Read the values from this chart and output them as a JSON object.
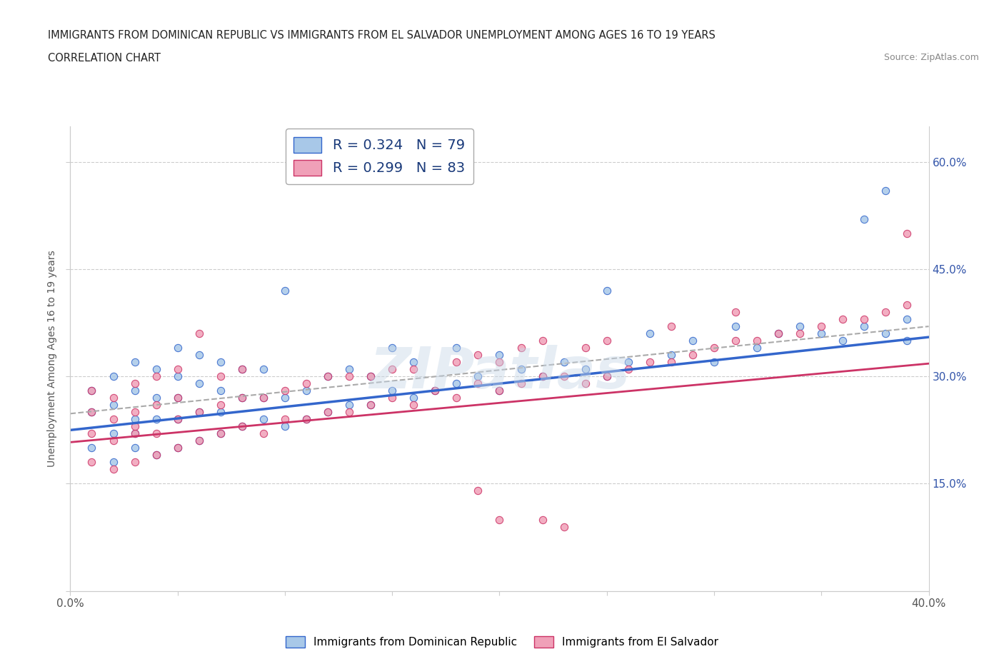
{
  "title_line1": "IMMIGRANTS FROM DOMINICAN REPUBLIC VS IMMIGRANTS FROM EL SALVADOR UNEMPLOYMENT AMONG AGES 16 TO 19 YEARS",
  "title_line2": "CORRELATION CHART",
  "source_text": "Source: ZipAtlas.com",
  "ylabel": "Unemployment Among Ages 16 to 19 years",
  "xlim": [
    0.0,
    0.4
  ],
  "ylim": [
    0.0,
    0.65
  ],
  "legend_R1": "R = 0.324",
  "legend_N1": "N = 79",
  "legend_R2": "R = 0.299",
  "legend_N2": "N = 83",
  "color_blue": "#a8c8e8",
  "color_pink": "#f0a0b8",
  "trend_color_blue": "#3366cc",
  "trend_color_pink": "#cc3366",
  "trend_color_gray": "#aaaaaa",
  "watermark": "ZIPatlas",
  "blue_x": [
    0.01,
    0.01,
    0.01,
    0.02,
    0.02,
    0.02,
    0.02,
    0.03,
    0.03,
    0.03,
    0.03,
    0.03,
    0.04,
    0.04,
    0.04,
    0.04,
    0.05,
    0.05,
    0.05,
    0.05,
    0.05,
    0.06,
    0.06,
    0.06,
    0.06,
    0.07,
    0.07,
    0.07,
    0.07,
    0.08,
    0.08,
    0.08,
    0.09,
    0.09,
    0.09,
    0.1,
    0.1,
    0.1,
    0.11,
    0.11,
    0.12,
    0.12,
    0.13,
    0.13,
    0.14,
    0.14,
    0.15,
    0.15,
    0.16,
    0.16,
    0.17,
    0.18,
    0.18,
    0.19,
    0.2,
    0.2,
    0.21,
    0.22,
    0.23,
    0.24,
    0.25,
    0.25,
    0.26,
    0.27,
    0.28,
    0.29,
    0.3,
    0.31,
    0.32,
    0.33,
    0.34,
    0.35,
    0.36,
    0.37,
    0.37,
    0.38,
    0.38,
    0.39,
    0.39
  ],
  "blue_y": [
    0.2,
    0.25,
    0.28,
    0.18,
    0.22,
    0.26,
    0.3,
    0.2,
    0.24,
    0.28,
    0.32,
    0.22,
    0.19,
    0.24,
    0.27,
    0.31,
    0.2,
    0.24,
    0.27,
    0.3,
    0.34,
    0.21,
    0.25,
    0.29,
    0.33,
    0.22,
    0.25,
    0.28,
    0.32,
    0.23,
    0.27,
    0.31,
    0.24,
    0.27,
    0.31,
    0.23,
    0.27,
    0.42,
    0.24,
    0.28,
    0.25,
    0.3,
    0.26,
    0.31,
    0.26,
    0.3,
    0.28,
    0.34,
    0.27,
    0.32,
    0.28,
    0.29,
    0.34,
    0.3,
    0.28,
    0.33,
    0.31,
    0.3,
    0.32,
    0.31,
    0.3,
    0.42,
    0.32,
    0.36,
    0.33,
    0.35,
    0.32,
    0.37,
    0.34,
    0.36,
    0.37,
    0.36,
    0.35,
    0.37,
    0.52,
    0.36,
    0.56,
    0.35,
    0.38
  ],
  "pink_x": [
    0.01,
    0.01,
    0.01,
    0.01,
    0.02,
    0.02,
    0.02,
    0.02,
    0.03,
    0.03,
    0.03,
    0.03,
    0.03,
    0.04,
    0.04,
    0.04,
    0.04,
    0.05,
    0.05,
    0.05,
    0.05,
    0.06,
    0.06,
    0.06,
    0.07,
    0.07,
    0.07,
    0.08,
    0.08,
    0.08,
    0.09,
    0.09,
    0.1,
    0.1,
    0.11,
    0.11,
    0.12,
    0.12,
    0.13,
    0.13,
    0.14,
    0.14,
    0.15,
    0.15,
    0.16,
    0.16,
    0.17,
    0.18,
    0.18,
    0.19,
    0.19,
    0.2,
    0.2,
    0.21,
    0.21,
    0.22,
    0.22,
    0.23,
    0.24,
    0.24,
    0.25,
    0.25,
    0.26,
    0.27,
    0.28,
    0.28,
    0.29,
    0.3,
    0.31,
    0.31,
    0.32,
    0.33,
    0.34,
    0.35,
    0.36,
    0.37,
    0.38,
    0.39,
    0.39,
    0.19,
    0.2,
    0.22,
    0.23
  ],
  "pink_y": [
    0.18,
    0.22,
    0.25,
    0.28,
    0.17,
    0.21,
    0.24,
    0.27,
    0.18,
    0.22,
    0.25,
    0.29,
    0.23,
    0.19,
    0.22,
    0.26,
    0.3,
    0.2,
    0.24,
    0.27,
    0.31,
    0.21,
    0.25,
    0.36,
    0.22,
    0.26,
    0.3,
    0.23,
    0.27,
    0.31,
    0.22,
    0.27,
    0.24,
    0.28,
    0.24,
    0.29,
    0.25,
    0.3,
    0.25,
    0.3,
    0.26,
    0.3,
    0.27,
    0.31,
    0.26,
    0.31,
    0.28,
    0.27,
    0.32,
    0.29,
    0.33,
    0.28,
    0.32,
    0.29,
    0.34,
    0.3,
    0.35,
    0.3,
    0.29,
    0.34,
    0.3,
    0.35,
    0.31,
    0.32,
    0.32,
    0.37,
    0.33,
    0.34,
    0.35,
    0.39,
    0.35,
    0.36,
    0.36,
    0.37,
    0.38,
    0.38,
    0.39,
    0.4,
    0.5,
    0.14,
    0.1,
    0.1,
    0.09
  ]
}
